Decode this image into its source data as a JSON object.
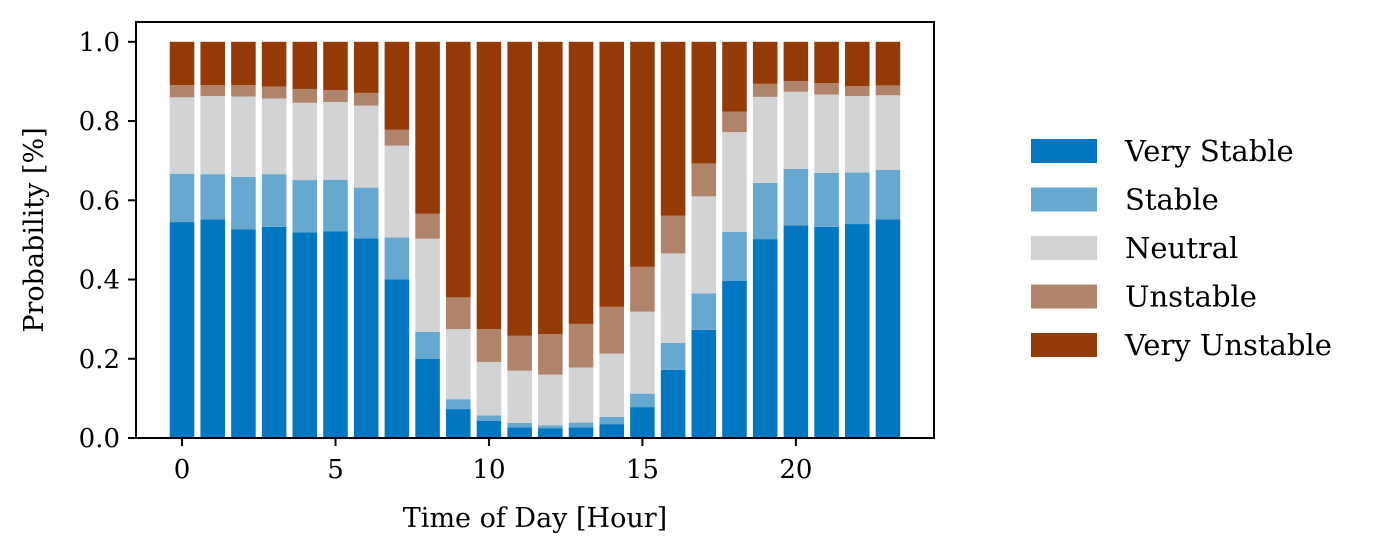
{
  "chart_data": {
    "type": "bar",
    "stacked": true,
    "title": "",
    "xlabel": "Time of Day [Hour]",
    "ylabel": "Probability [%]",
    "xlim": [
      -1.5,
      24.5
    ],
    "ylim": [
      0,
      1.05
    ],
    "xticks": [
      0,
      5,
      10,
      15,
      20
    ],
    "yticks": [
      0.0,
      0.2,
      0.4,
      0.6,
      0.8,
      1.0
    ],
    "xtick_labels": [
      "0",
      "5",
      "10",
      "15",
      "20"
    ],
    "ytick_labels": [
      "0.0",
      "0.2",
      "0.4",
      "0.6",
      "0.8",
      "1.0"
    ],
    "grid": false,
    "legend_position": "right",
    "x": [
      0,
      1,
      2,
      3,
      4,
      5,
      6,
      7,
      8,
      9,
      10,
      11,
      12,
      13,
      14,
      15,
      16,
      17,
      18,
      19,
      20,
      21,
      22,
      23
    ],
    "series": [
      {
        "name": "Very Stable",
        "color": "#0077c0",
        "values": [
          0.545,
          0.552,
          0.527,
          0.533,
          0.519,
          0.522,
          0.504,
          0.4,
          0.2,
          0.073,
          0.043,
          0.027,
          0.024,
          0.027,
          0.035,
          0.078,
          0.172,
          0.273,
          0.397,
          0.502,
          0.537,
          0.533,
          0.54,
          0.552
        ]
      },
      {
        "name": "Stable",
        "color": "#66a8d0",
        "values": [
          0.122,
          0.114,
          0.132,
          0.133,
          0.132,
          0.13,
          0.128,
          0.106,
          0.068,
          0.025,
          0.014,
          0.011,
          0.008,
          0.012,
          0.018,
          0.034,
          0.068,
          0.092,
          0.123,
          0.142,
          0.142,
          0.136,
          0.13,
          0.125
        ]
      },
      {
        "name": "Neutral",
        "color": "#d1d3d4",
        "values": [
          0.193,
          0.197,
          0.203,
          0.191,
          0.195,
          0.196,
          0.207,
          0.232,
          0.235,
          0.177,
          0.135,
          0.132,
          0.128,
          0.139,
          0.16,
          0.207,
          0.226,
          0.245,
          0.252,
          0.217,
          0.195,
          0.198,
          0.193,
          0.188
        ]
      },
      {
        "name": "Unstable",
        "color": "#b0836b",
        "values": [
          0.031,
          0.028,
          0.029,
          0.03,
          0.035,
          0.03,
          0.032,
          0.04,
          0.063,
          0.08,
          0.083,
          0.088,
          0.102,
          0.11,
          0.118,
          0.113,
          0.095,
          0.083,
          0.052,
          0.033,
          0.027,
          0.029,
          0.025,
          0.025
        ]
      },
      {
        "name": "Very Unstable",
        "color": "#933a06",
        "values": [
          0.109,
          0.109,
          0.109,
          0.113,
          0.119,
          0.122,
          0.129,
          0.222,
          0.434,
          0.645,
          0.725,
          0.742,
          0.738,
          0.712,
          0.669,
          0.568,
          0.439,
          0.307,
          0.176,
          0.106,
          0.099,
          0.104,
          0.112,
          0.11
        ]
      }
    ]
  }
}
